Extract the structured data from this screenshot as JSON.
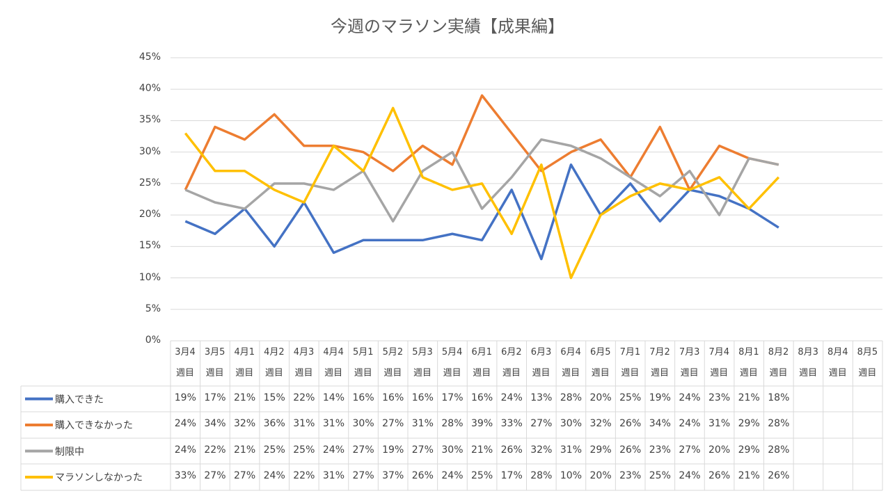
{
  "chart_data": {
    "type": "line",
    "title": "今週のマラソン実績【成果編】",
    "categories": [
      "3月4週目",
      "3月5週目",
      "4月1週目",
      "4月2週目",
      "4月3週目",
      "4月4週目",
      "5月1週目",
      "5月2週目",
      "5月3週目",
      "5月4週目",
      "6月1週目",
      "6月2週目",
      "6月3週目",
      "6月4週目",
      "6月5週目",
      "7月1週目",
      "7月2週目",
      "7月3週目",
      "7月4週目",
      "8月1週目",
      "8月2週目",
      "8月3週目",
      "8月4週目",
      "8月5週目"
    ],
    "ylim": [
      0,
      45
    ],
    "yticks": [
      {
        "value": 0,
        "label": "0%"
      },
      {
        "value": 5,
        "label": "5%"
      },
      {
        "value": 10,
        "label": "10%"
      },
      {
        "value": 15,
        "label": "15%"
      },
      {
        "value": 20,
        "label": "20%"
      },
      {
        "value": 25,
        "label": "25%"
      },
      {
        "value": 30,
        "label": "30%"
      },
      {
        "value": 35,
        "label": "35%"
      },
      {
        "value": 40,
        "label": "40%"
      },
      {
        "value": 45,
        "label": "45%"
      }
    ],
    "grid": true,
    "series": [
      {
        "name": "購入できた",
        "color": "#4472c4",
        "values": [
          19,
          17,
          21,
          15,
          22,
          14,
          16,
          16,
          16,
          17,
          16,
          24,
          13,
          28,
          20,
          25,
          19,
          24,
          23,
          21,
          18,
          null,
          null,
          null
        ],
        "value_labels": [
          "19%",
          "17%",
          "21%",
          "15%",
          "22%",
          "14%",
          "16%",
          "16%",
          "16%",
          "17%",
          "16%",
          "24%",
          "13%",
          "28%",
          "20%",
          "25%",
          "19%",
          "24%",
          "23%",
          "21%",
          "18%",
          null,
          null,
          null
        ]
      },
      {
        "name": "購入できなかった",
        "color": "#ed7d31",
        "values": [
          24,
          34,
          32,
          36,
          31,
          31,
          30,
          27,
          31,
          28,
          39,
          33,
          27,
          30,
          32,
          26,
          34,
          24,
          31,
          29,
          28,
          null,
          null,
          null
        ],
        "value_labels": [
          "24%",
          "34%",
          "32%",
          "36%",
          "31%",
          "31%",
          "30%",
          "27%",
          "31%",
          "28%",
          "39%",
          "33%",
          "27%",
          "30%",
          "32%",
          "26%",
          "34%",
          "24%",
          "31%",
          "29%",
          "28%",
          null,
          null,
          null
        ]
      },
      {
        "name": "制限中",
        "color": "#a5a5a5",
        "values": [
          24,
          22,
          21,
          25,
          25,
          24,
          27,
          19,
          27,
          30,
          21,
          26,
          32,
          31,
          29,
          26,
          23,
          27,
          20,
          29,
          28,
          null,
          null,
          null
        ],
        "value_labels": [
          "24%",
          "22%",
          "21%",
          "25%",
          "25%",
          "24%",
          "27%",
          "19%",
          "27%",
          "30%",
          "21%",
          "26%",
          "32%",
          "31%",
          "29%",
          "26%",
          "23%",
          "27%",
          "20%",
          "29%",
          "28%",
          null,
          null,
          null
        ]
      },
      {
        "name": "マラソンしなかった",
        "color": "#ffc000",
        "values": [
          33,
          27,
          27,
          24,
          22,
          31,
          27,
          37,
          26,
          24,
          25,
          17,
          28,
          10,
          20,
          23,
          25,
          24,
          26,
          21,
          26,
          null,
          null,
          null
        ],
        "value_labels": [
          "33%",
          "27%",
          "27%",
          "24%",
          "22%",
          "31%",
          "27%",
          "37%",
          "26%",
          "24%",
          "25%",
          "17%",
          "28%",
          "10%",
          "20%",
          "23%",
          "25%",
          "24%",
          "26%",
          "21%",
          "26%",
          null,
          null,
          null
        ]
      }
    ]
  }
}
